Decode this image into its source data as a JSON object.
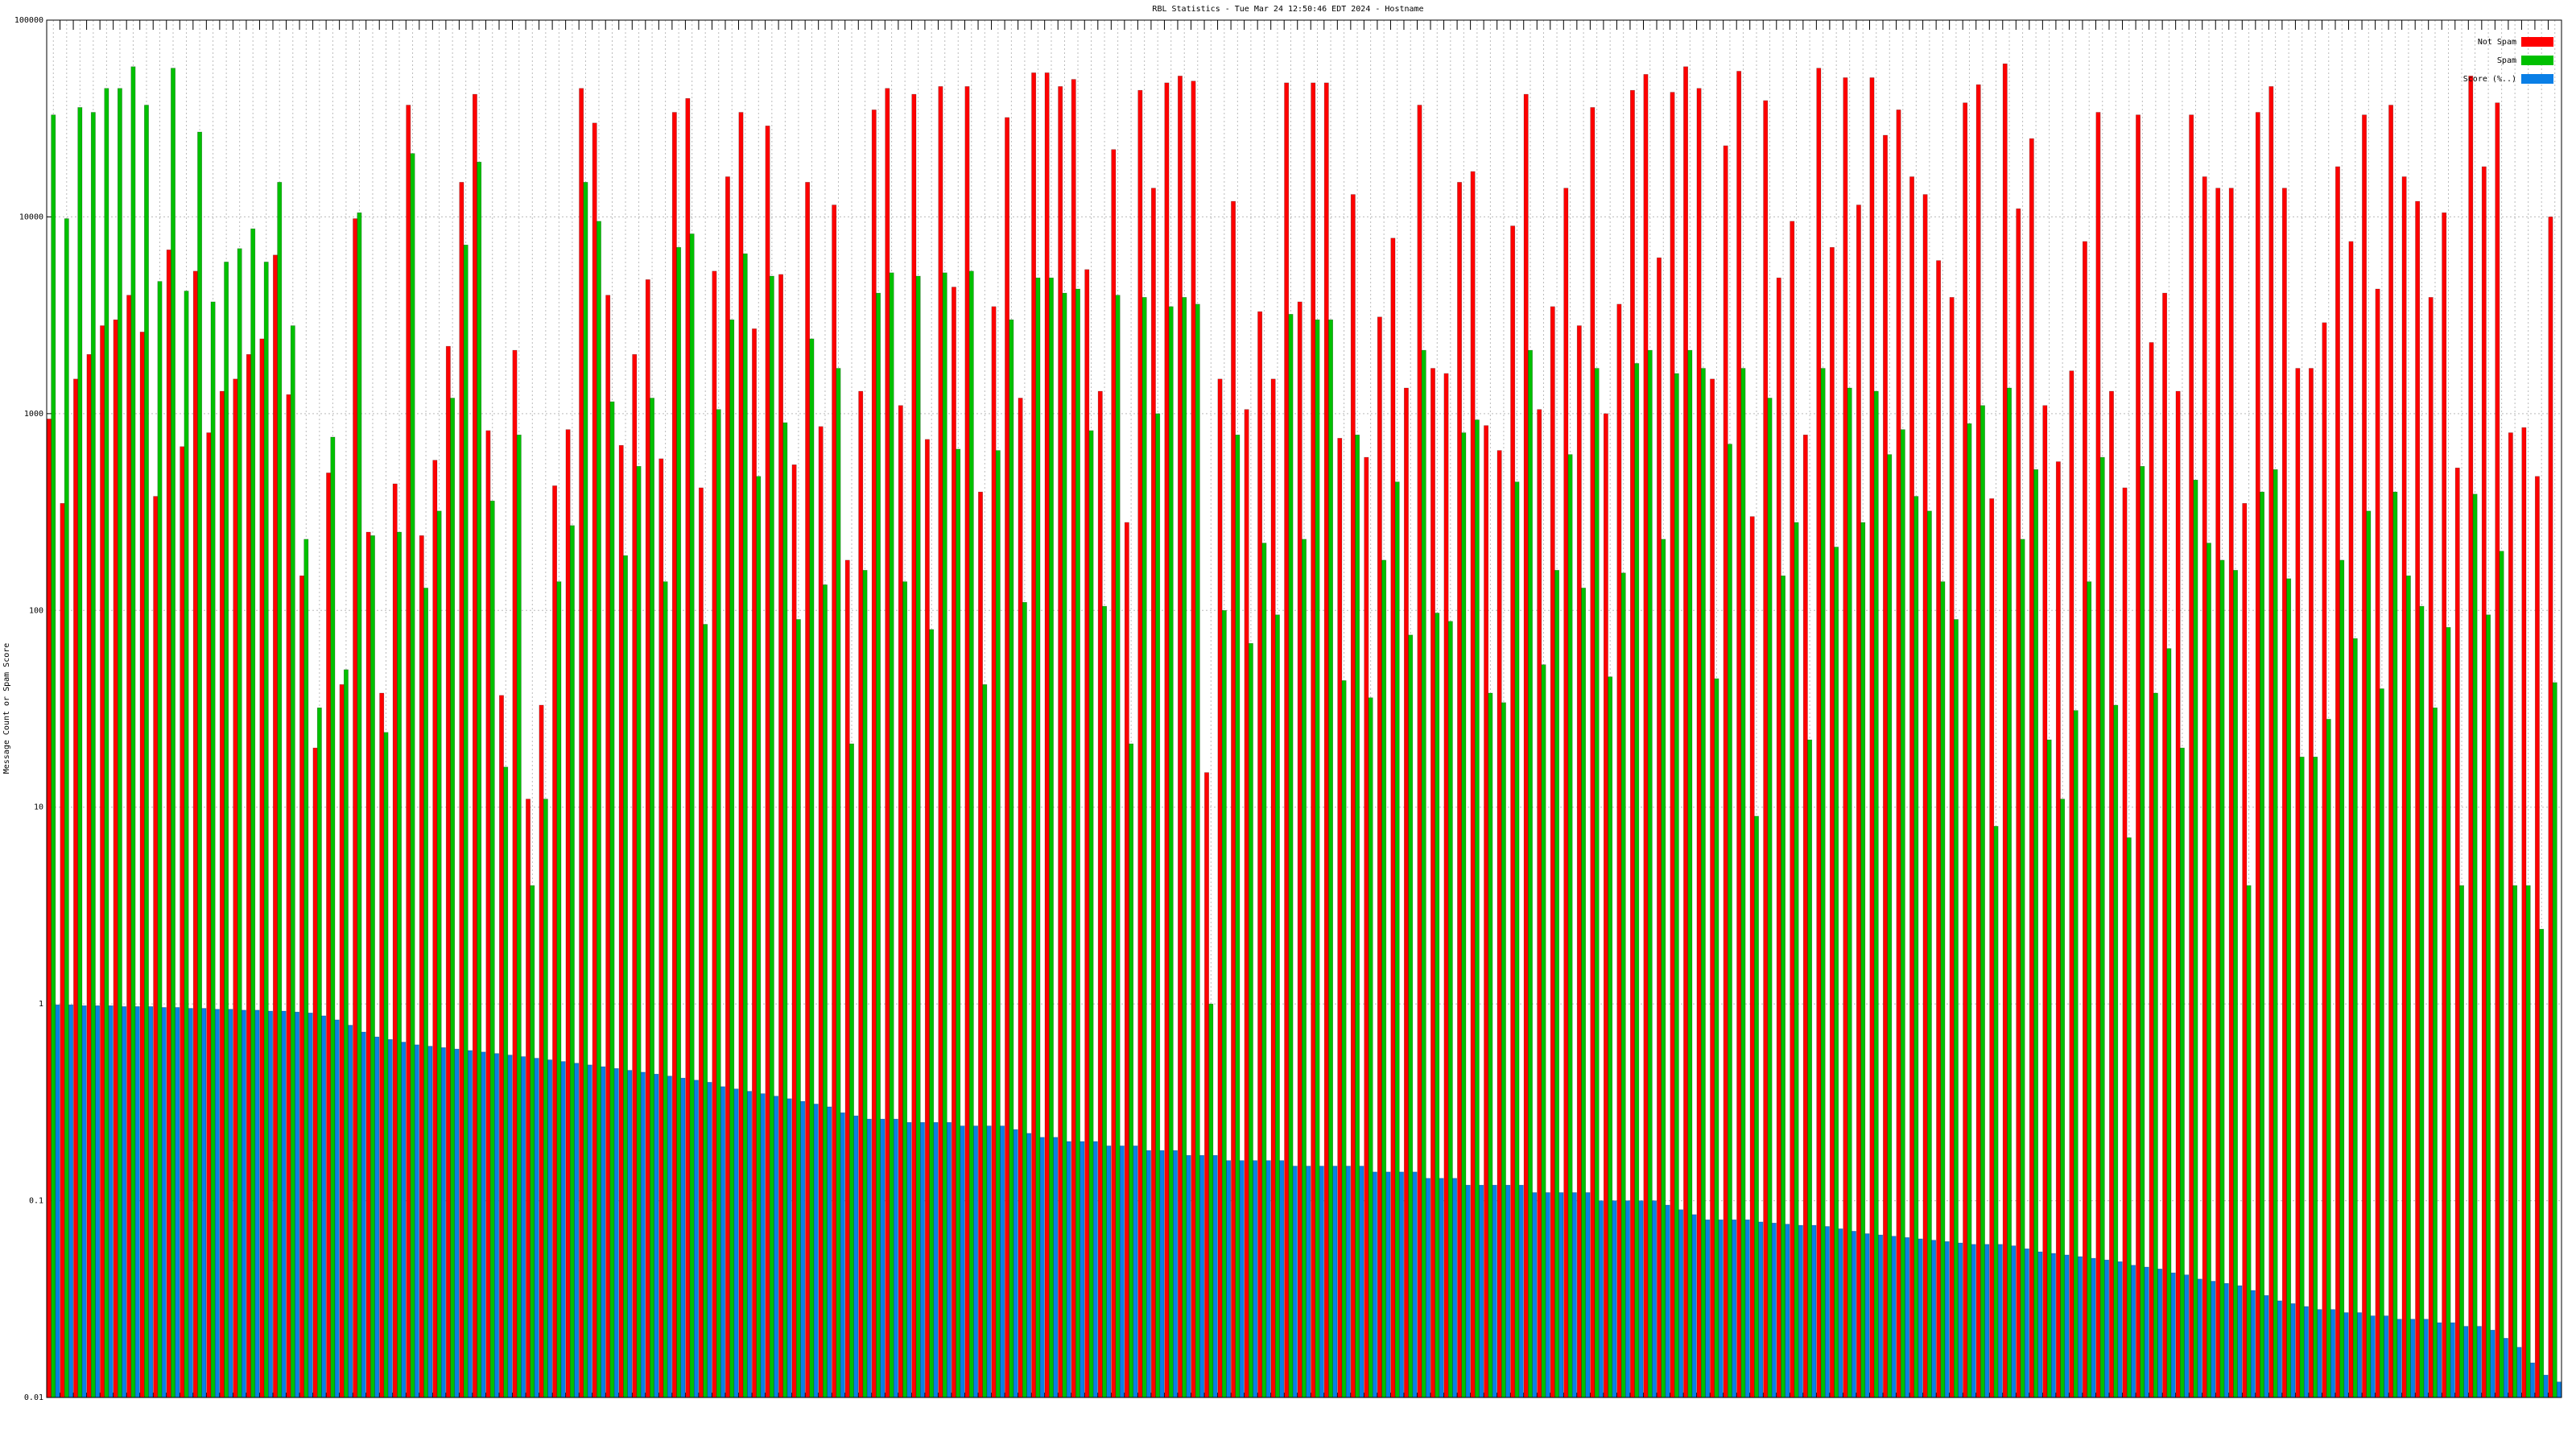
{
  "chart_data": {
    "type": "bar",
    "title": "RBL Statistics - Tue Mar 24 12:50:46 EDT 2024 - Hostname",
    "y_label": "Message Count or Spam Score",
    "log_scale": true,
    "grid": true,
    "legend": "top-right",
    "ylim": [
      0.01,
      100000
    ],
    "yticks": [
      0.01,
      0.1,
      1,
      10,
      100,
      1000,
      10000,
      100000
    ],
    "categories": [
      null,
      null,
      null,
      null,
      null,
      null,
      null,
      null,
      null,
      null,
      null,
      null,
      null,
      null,
      null,
      null,
      null,
      null,
      null,
      null,
      null,
      null,
      null,
      null,
      null,
      null,
      null,
      null,
      null,
      null,
      null,
      null,
      null,
      null,
      null,
      null,
      null,
      null,
      null,
      null,
      null,
      null,
      null,
      null,
      null,
      null,
      null,
      null,
      null,
      null,
      null,
      null,
      null,
      null,
      null,
      null,
      null,
      null,
      null,
      null,
      null,
      null,
      null,
      null,
      null,
      null,
      null,
      null,
      null,
      null,
      null,
      null,
      null,
      null,
      null,
      null,
      null,
      null,
      null,
      null,
      null,
      null,
      null,
      null,
      null,
      null,
      null,
      null,
      null,
      null,
      null,
      null,
      null,
      null,
      null,
      null,
      null,
      null,
      null,
      null,
      null,
      null,
      null,
      null,
      null,
      null,
      null,
      null,
      null,
      null,
      null,
      null,
      null,
      null,
      null,
      null,
      null,
      null,
      null,
      null,
      null,
      null,
      null,
      null,
      null,
      null,
      null,
      null,
      null,
      null,
      null,
      null,
      null,
      null,
      null,
      null,
      null,
      null,
      null,
      null,
      null,
      null,
      null,
      null,
      null,
      null,
      null,
      null,
      null,
      null,
      null,
      null,
      null,
      null,
      null,
      null,
      null,
      null,
      null,
      null,
      null,
      null,
      null,
      null,
      null,
      null,
      null,
      null,
      null,
      null,
      null,
      null,
      null,
      null,
      null,
      null,
      null,
      null,
      null,
      null,
      null,
      null,
      null,
      null,
      null,
      null,
      null,
      null,
      null
    ],
    "series": [
      {
        "name": "Not Spam",
        "color": "#ff0000",
        "values": [
          940,
          350,
          1500,
          2000,
          2800,
          3000,
          4000,
          2600,
          380,
          6800,
          680,
          5300,
          800,
          1300,
          1500,
          2000,
          2400,
          6400,
          1250,
          150,
          20,
          500,
          42,
          9800,
          250,
          38,
          440,
          37000,
          240,
          580,
          2200,
          15000,
          42000,
          820,
          37,
          2100,
          11,
          33,
          430,
          830,
          45000,
          30000,
          4000,
          690,
          2000,
          4800,
          590,
          34000,
          40000,
          420,
          5300,
          16000,
          34000,
          2700,
          29000,
          5100,
          550,
          15000,
          860,
          11500,
          180,
          1300,
          35000,
          45000,
          1100,
          42000,
          740,
          46000,
          4400,
          46000,
          400,
          3500,
          32000,
          1200,
          54000,
          54000,
          46000,
          50000,
          5400,
          1300,
          22000,
          280,
          44000,
          14000,
          48000,
          52000,
          49000,
          15,
          1500,
          12000,
          1050,
          3300,
          1500,
          48000,
          3700,
          48000,
          48000,
          750,
          13000,
          600,
          3100,
          7800,
          1350,
          37000,
          1700,
          1600,
          15000,
          17000,
          870,
          650,
          9000,
          42000,
          1050,
          3500,
          14000,
          2800,
          36000,
          1000,
          3600,
          44000,
          53000,
          6200,
          43000,
          58000,
          45000,
          1500,
          23000,
          55000,
          300,
          39000,
          4900,
          9500,
          780,
          57000,
          7000,
          51000,
          11500,
          51000,
          26000,
          35000,
          16000,
          13000,
          6000,
          3900,
          38000,
          47000,
          370,
          60000,
          11000,
          25000,
          1100,
          570,
          1650,
          7500,
          34000,
          1300,
          420,
          33000,
          2300,
          4100,
          1300,
          33000,
          16000,
          14000,
          14000,
          350,
          34000,
          46000,
          14000,
          1700,
          1700,
          2900,
          18000,
          7500,
          33000,
          4300,
          37000,
          16000,
          12000,
          3900,
          10500,
          530,
          52000,
          18000,
          38000,
          800,
          850,
          480,
          10000
        ]
      },
      {
        "name": "Spam",
        "color": "#00c000",
        "values": [
          33000,
          9800,
          36000,
          34000,
          45000,
          45000,
          58000,
          37000,
          4700,
          57000,
          4200,
          27000,
          3700,
          5900,
          6900,
          8700,
          5900,
          15000,
          2800,
          230,
          32,
          760,
          50,
          10500,
          240,
          24,
          250,
          21000,
          130,
          320,
          1200,
          7200,
          19000,
          360,
          16,
          780,
          4,
          11,
          140,
          270,
          15000,
          9500,
          1150,
          190,
          540,
          1200,
          140,
          7000,
          8200,
          85,
          1050,
          3000,
          6500,
          480,
          5000,
          900,
          90,
          2400,
          135,
          1700,
          21,
          160,
          4100,
          5200,
          140,
          5000,
          80,
          5200,
          660,
          5300,
          42,
          650,
          3000,
          110,
          4900,
          4900,
          4100,
          4300,
          820,
          105,
          4000,
          21,
          3900,
          1000,
          3500,
          3900,
          3600,
          1,
          100,
          780,
          68,
          220,
          95,
          3200,
          230,
          3000,
          3000,
          44,
          780,
          36,
          180,
          450,
          75,
          2100,
          97,
          88,
          800,
          930,
          38,
          34,
          450,
          2100,
          53,
          160,
          620,
          130,
          1700,
          46,
          155,
          1800,
          2100,
          230,
          1600,
          2100,
          1700,
          45,
          700,
          1700,
          9,
          1200,
          150,
          280,
          22,
          1700,
          210,
          1350,
          280,
          1300,
          620,
          830,
          380,
          320,
          140,
          90,
          890,
          1100,
          8,
          1350,
          230,
          520,
          22,
          11,
          31,
          140,
          600,
          33,
          7,
          540,
          38,
          64,
          20,
          460,
          220,
          180,
          160,
          4,
          400,
          520,
          145,
          18,
          18,
          28,
          180,
          72,
          320,
          40,
          400,
          150,
          105,
          32,
          82,
          4,
          390,
          95,
          200,
          4,
          4,
          2.4,
          43
        ]
      },
      {
        "name": "Score (%..)",
        "color": "#0a7fe6",
        "values": [
          0.99,
          0.99,
          0.98,
          0.98,
          0.98,
          0.97,
          0.97,
          0.97,
          0.96,
          0.96,
          0.95,
          0.95,
          0.94,
          0.94,
          0.93,
          0.93,
          0.92,
          0.92,
          0.91,
          0.9,
          0.87,
          0.83,
          0.78,
          0.72,
          0.68,
          0.66,
          0.64,
          0.62,
          0.61,
          0.6,
          0.59,
          0.58,
          0.57,
          0.56,
          0.55,
          0.54,
          0.53,
          0.52,
          0.51,
          0.5,
          0.49,
          0.48,
          0.47,
          0.46,
          0.45,
          0.44,
          0.43,
          0.42,
          0.41,
          0.4,
          0.38,
          0.37,
          0.36,
          0.35,
          0.34,
          0.33,
          0.32,
          0.31,
          0.3,
          0.28,
          0.27,
          0.26,
          0.26,
          0.26,
          0.25,
          0.25,
          0.25,
          0.25,
          0.24,
          0.24,
          0.24,
          0.24,
          0.23,
          0.22,
          0.21,
          0.21,
          0.2,
          0.2,
          0.2,
          0.19,
          0.19,
          0.19,
          0.18,
          0.18,
          0.18,
          0.17,
          0.17,
          0.17,
          0.16,
          0.16,
          0.16,
          0.16,
          0.16,
          0.15,
          0.15,
          0.15,
          0.15,
          0.15,
          0.15,
          0.14,
          0.14,
          0.14,
          0.14,
          0.13,
          0.13,
          0.13,
          0.12,
          0.12,
          0.12,
          0.12,
          0.12,
          0.11,
          0.11,
          0.11,
          0.11,
          0.11,
          0.1,
          0.1,
          0.1,
          0.1,
          0.1,
          0.095,
          0.09,
          0.085,
          0.08,
          0.08,
          0.08,
          0.08,
          0.078,
          0.077,
          0.076,
          0.075,
          0.075,
          0.074,
          0.072,
          0.07,
          0.068,
          0.067,
          0.066,
          0.065,
          0.064,
          0.063,
          0.062,
          0.061,
          0.06,
          0.06,
          0.06,
          0.059,
          0.057,
          0.055,
          0.054,
          0.053,
          0.052,
          0.051,
          0.05,
          0.049,
          0.047,
          0.046,
          0.045,
          0.043,
          0.042,
          0.04,
          0.039,
          0.038,
          0.037,
          0.035,
          0.033,
          0.031,
          0.03,
          0.029,
          0.028,
          0.028,
          0.027,
          0.027,
          0.026,
          0.026,
          0.025,
          0.025,
          0.025,
          0.024,
          0.024,
          0.023,
          0.023,
          0.022,
          0.02,
          0.018,
          0.015,
          0.013,
          0.012
        ]
      }
    ]
  }
}
